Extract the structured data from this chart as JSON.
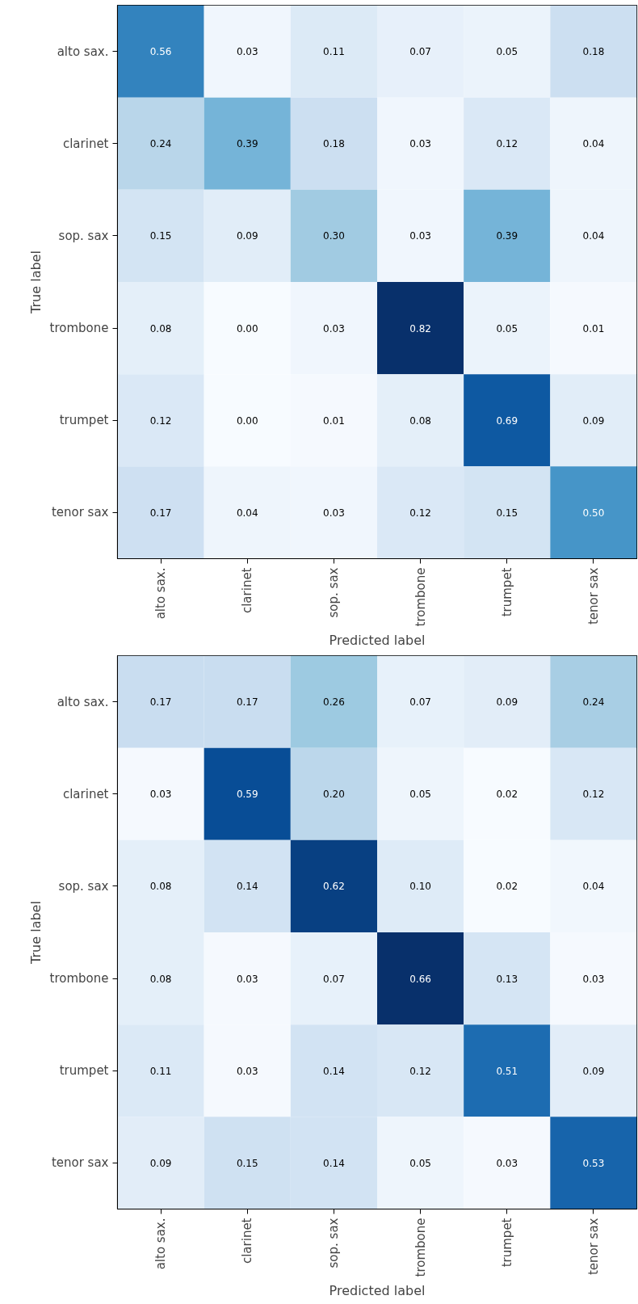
{
  "chart_data": [
    {
      "type": "heatmap",
      "xlabel": "Predicted label",
      "ylabel": "True label",
      "data_labels": true,
      "categories": [
        "alto sax.",
        "clarinet",
        "sop. sax",
        "trombone",
        "trumpet",
        "tenor sax"
      ],
      "y_categories": [
        "alto sax.",
        "clarinet",
        "sop. sax",
        "trombone",
        "trumpet",
        "tenor sax"
      ],
      "cells": [
        [
          0.56,
          0.03,
          0.11,
          0.07,
          0.05,
          0.18
        ],
        [
          0.24,
          0.39,
          0.18,
          0.03,
          0.12,
          0.04
        ],
        [
          0.15,
          0.09,
          0.3,
          0.03,
          0.39,
          0.04
        ],
        [
          0.08,
          0.0,
          0.03,
          0.82,
          0.05,
          0.01
        ],
        [
          0.12,
          0.0,
          0.01,
          0.08,
          0.69,
          0.09
        ],
        [
          0.17,
          0.04,
          0.03,
          0.12,
          0.15,
          0.5
        ]
      ],
      "cell_labels": [
        [
          "0.56",
          "0.03",
          "0.11",
          "0.07",
          "0.05",
          "0.18"
        ],
        [
          "0.24",
          "0.39",
          "0.18",
          "0.03",
          "0.12",
          "0.04"
        ],
        [
          "0.15",
          "0.09",
          "0.30",
          "0.03",
          "0.39",
          "0.04"
        ],
        [
          "0.08",
          "0.00",
          "0.03",
          "0.82",
          "0.05",
          "0.01"
        ],
        [
          "0.12",
          "0.00",
          "0.01",
          "0.08",
          "0.69",
          "0.09"
        ],
        [
          "0.17",
          "0.04",
          "0.03",
          "0.12",
          "0.15",
          "0.50"
        ]
      ]
    },
    {
      "type": "heatmap",
      "xlabel": "Predicted label",
      "ylabel": "True label",
      "data_labels": true,
      "categories": [
        "alto sax.",
        "clarinet",
        "sop. sax",
        "trombone",
        "trumpet",
        "tenor sax"
      ],
      "y_categories": [
        "alto sax.",
        "clarinet",
        "sop. sax",
        "trombone",
        "trumpet",
        "tenor sax"
      ],
      "cells": [
        [
          0.17,
          0.17,
          0.26,
          0.07,
          0.09,
          0.24
        ],
        [
          0.03,
          0.59,
          0.2,
          0.05,
          0.02,
          0.12
        ],
        [
          0.08,
          0.14,
          0.62,
          0.1,
          0.02,
          0.04
        ],
        [
          0.08,
          0.03,
          0.07,
          0.66,
          0.13,
          0.03
        ],
        [
          0.11,
          0.03,
          0.14,
          0.12,
          0.51,
          0.09
        ],
        [
          0.09,
          0.15,
          0.14,
          0.05,
          0.03,
          0.53
        ]
      ],
      "cell_labels": [
        [
          "0.17",
          "0.17",
          "0.26",
          "0.07",
          "0.09",
          "0.24"
        ],
        [
          "0.03",
          "0.59",
          "0.20",
          "0.05",
          "0.02",
          "0.12"
        ],
        [
          "0.08",
          "0.14",
          "0.62",
          "0.10",
          "0.02",
          "0.04"
        ],
        [
          "0.08",
          "0.03",
          "0.07",
          "0.66",
          "0.13",
          "0.03"
        ],
        [
          "0.11",
          "0.03",
          "0.14",
          "0.12",
          "0.51",
          "0.09"
        ],
        [
          "0.09",
          "0.15",
          "0.14",
          "0.05",
          "0.03",
          "0.53"
        ]
      ]
    }
  ]
}
